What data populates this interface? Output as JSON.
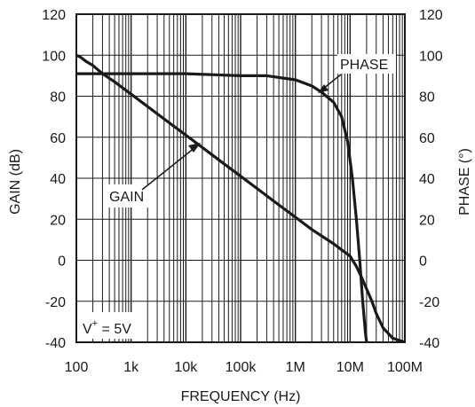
{
  "chart_data": {
    "type": "line",
    "xlabel": "FREQUENCY (Hz)",
    "ylabel_left": "GAIN (dB)",
    "ylabel_right": "PHASE (°)",
    "x_scale": "log",
    "xlim": [
      100,
      100000000
    ],
    "ylim_left": [
      -40,
      120
    ],
    "ylim_right": [
      -40,
      120
    ],
    "x_ticks": [
      {
        "value": 100,
        "label": "100"
      },
      {
        "value": 1000,
        "label": "1k"
      },
      {
        "value": 10000,
        "label": "10k"
      },
      {
        "value": 100000,
        "label": "100k"
      },
      {
        "value": 1000000,
        "label": "1M"
      },
      {
        "value": 10000000,
        "label": "10M"
      },
      {
        "value": 100000000,
        "label": "100M"
      }
    ],
    "y_ticks_left": [
      "120",
      "100",
      "80",
      "60",
      "40",
      "20",
      "0",
      "-20",
      "-40"
    ],
    "y_ticks_right": [
      "120",
      "100",
      "80",
      "60",
      "40",
      "20",
      "0",
      "-20",
      "-40"
    ],
    "grid": true,
    "series": [
      {
        "name": "GAIN",
        "axis": "left",
        "points": [
          [
            100,
            100
          ],
          [
            120,
            99
          ],
          [
            150,
            97
          ],
          [
            200,
            95
          ],
          [
            300,
            91
          ],
          [
            500,
            87
          ],
          [
            1000,
            81
          ],
          [
            2000,
            75
          ],
          [
            5000,
            67
          ],
          [
            10000,
            61
          ],
          [
            20000,
            55
          ],
          [
            50000,
            47
          ],
          [
            100000,
            41
          ],
          [
            200000,
            35
          ],
          [
            500000,
            27
          ],
          [
            1000000,
            21
          ],
          [
            2000000,
            15
          ],
          [
            5000000,
            8
          ],
          [
            10000000,
            2
          ],
          [
            13000000,
            -3
          ],
          [
            16000000,
            -8
          ],
          [
            20000000,
            -14
          ],
          [
            25000000,
            -20
          ],
          [
            30000000,
            -26
          ],
          [
            40000000,
            -33
          ],
          [
            60000000,
            -38
          ],
          [
            100000000,
            -40
          ]
        ]
      },
      {
        "name": "PHASE",
        "axis": "right",
        "points": [
          [
            100,
            91
          ],
          [
            1000,
            91
          ],
          [
            10000,
            91
          ],
          [
            100000,
            90
          ],
          [
            300000,
            90
          ],
          [
            1000000,
            88
          ],
          [
            2000000,
            85
          ],
          [
            3000000,
            82
          ],
          [
            5000000,
            77
          ],
          [
            7000000,
            70
          ],
          [
            9000000,
            58
          ],
          [
            11000000,
            40
          ],
          [
            13000000,
            20
          ],
          [
            15000000,
            0
          ],
          [
            17000000,
            -20
          ],
          [
            19000000,
            -35
          ],
          [
            20000000,
            -40
          ]
        ]
      }
    ],
    "annotations": {
      "gain_label": "GAIN",
      "phase_label": "PHASE",
      "supply_base": "V",
      "supply_sup": "+",
      "supply_value": " = 5V"
    }
  }
}
